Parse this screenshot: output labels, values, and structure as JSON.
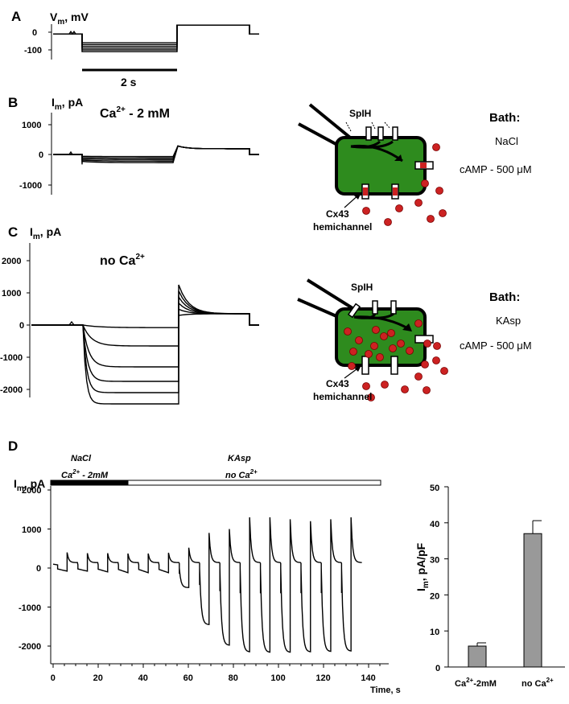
{
  "panels": {
    "A": {
      "label": "A",
      "ylabel": "V",
      "ylabel_sub": "m",
      "ylabel_unit": ", mV",
      "yticks": [
        "0",
        "-100"
      ],
      "scale_bar": "2 s"
    },
    "B": {
      "label": "B",
      "ylabel": "I",
      "ylabel_sub": "m",
      "ylabel_unit": ", pA",
      "yticks": [
        "1000",
        "0",
        "-1000"
      ],
      "condition": "Ca",
      "condition_sup": "2+",
      "condition_rest": " -  2 mM",
      "bath_title": "Bath:",
      "bath_solution": "NaCl",
      "camp": "cAMP  - 500 μM",
      "channel_label": "SpIH",
      "hemichannel_line1": "Cx43",
      "hemichannel_line2": "hemichannel"
    },
    "C": {
      "label": "C",
      "ylabel": "I",
      "ylabel_sub": "m",
      "ylabel_unit": ", pA",
      "yticks": [
        "2000",
        "1000",
        "0",
        "-1000",
        "-2000"
      ],
      "condition": "no Ca",
      "condition_sup": "2+",
      "bath_title": "Bath:",
      "bath_solution": "KAsp",
      "camp": "cAMP  - 500 μM",
      "channel_label": "SpIH",
      "hemichannel_line1": "Cx43",
      "hemichannel_line2": "hemichannel"
    },
    "D": {
      "label": "D",
      "ylabel": "I",
      "ylabel_sub": "m",
      "ylabel_unit": ", pA",
      "yticks": [
        "2000",
        "1000",
        "0",
        "-1000",
        "-2000"
      ],
      "xticks": [
        "0",
        "20",
        "40",
        "60",
        "80",
        "100",
        "120",
        "140"
      ],
      "xlabel": "Time, s",
      "bar1_line1": "NaCl",
      "bar1_line2": "Ca",
      "bar1_sup": "2+",
      "bar1_rest": " - 2mM",
      "bar2_line1": "KAsp",
      "bar2_line2": "no Ca",
      "bar2_sup": "2+"
    }
  },
  "chart_data": [
    {
      "type": "line",
      "panel": "A",
      "description_axis": "V_m (mV)",
      "ylim": [
        -130,
        30
      ],
      "holding_potential_mV": -10,
      "step_potentials_mV": [
        -60,
        -70,
        -80,
        -90,
        -100,
        -110
      ],
      "tail_potential_mV": 40,
      "step_duration_s": 2
    },
    {
      "type": "line",
      "panel": "B",
      "ylabel": "I_m, pA",
      "ylim": [
        -1200,
        1500
      ],
      "step_currents_pA": [
        -70,
        -120,
        -170,
        -220,
        -270
      ],
      "tail_peak_pA": 280,
      "tail_steady_pA": 190
    },
    {
      "type": "line",
      "panel": "C",
      "ylabel": "I_m, pA",
      "ylim": [
        -2600,
        2600
      ],
      "steady_state_currents_pA": [
        -80,
        -650,
        -1300,
        -1750,
        -2100,
        -2450
      ],
      "tail_peak_pA": 1250,
      "tail_steady_pA": 350
    },
    {
      "type": "line",
      "panel": "D",
      "ylabel": "I_m, pA",
      "xlabel": "Time, s",
      "xlim": [
        0,
        145
      ],
      "ylim": [
        -2300,
        2100
      ],
      "xticks": [
        0,
        20,
        40,
        60,
        80,
        100,
        120,
        140
      ],
      "yticks": [
        -2000,
        -1000,
        0,
        1000,
        2000
      ],
      "pulse_starts_s": [
        2,
        11,
        20,
        29,
        38,
        47,
        56,
        65,
        74,
        83,
        92,
        101,
        110,
        119,
        128
      ],
      "pulse_min_pA": [
        -80,
        -80,
        -100,
        -120,
        -120,
        -120,
        -500,
        -1450,
        -1980,
        -2150,
        -2160,
        -2160,
        -2150,
        -2140,
        -2130
      ],
      "pulse_tail_pA": [
        400,
        380,
        380,
        370,
        370,
        390,
        520,
        900,
        1000,
        1300,
        1300,
        1250,
        1200,
        1250,
        1300
      ],
      "solution_change_s": 32
    },
    {
      "type": "bar",
      "panel": "D-inset",
      "categories": [
        "Ca2+-2mM",
        "no Ca2+"
      ],
      "values": [
        5.8,
        37.0
      ],
      "errors": [
        0.9,
        3.6
      ],
      "ylabel": "I_m, pA/pF",
      "ylim": [
        0,
        50
      ],
      "yticks": [
        0,
        10,
        20,
        30,
        40,
        50
      ],
      "bar_color": "#999999"
    }
  ],
  "colors": {
    "cell_fill": "#2e8b1e",
    "cell_stroke": "#000000",
    "dots": "#cc2222",
    "bar_fill": "#999999"
  }
}
